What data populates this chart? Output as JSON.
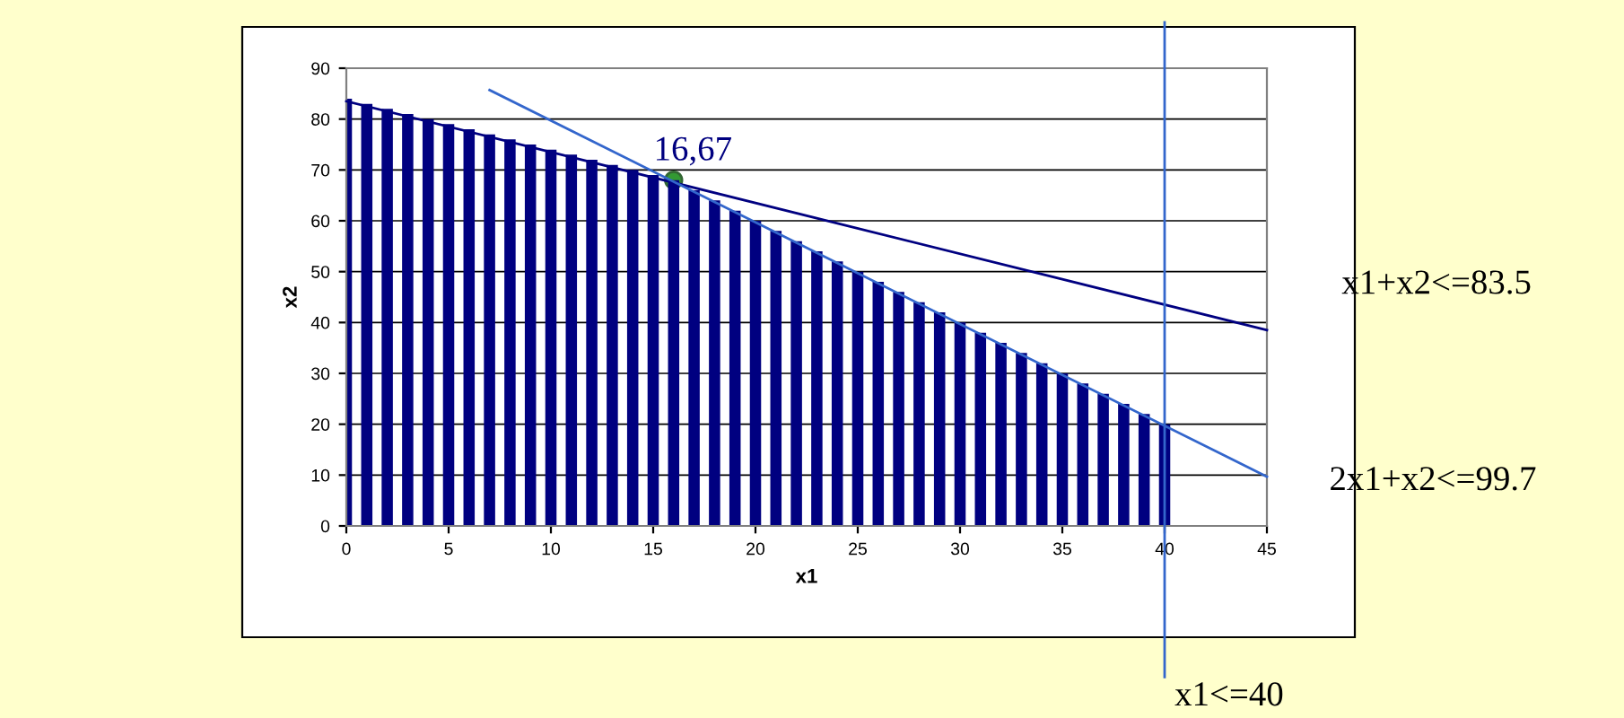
{
  "chart_data": {
    "type": "bar",
    "xlabel": "x1",
    "ylabel": "x2",
    "xlim": [
      0,
      45
    ],
    "xticks": [
      0,
      5,
      10,
      15,
      20,
      25,
      30,
      35,
      40,
      45
    ],
    "ylim": [
      0,
      90
    ],
    "yticks": [
      0,
      10,
      20,
      30,
      40,
      50,
      60,
      70,
      80,
      90
    ],
    "grid": "y",
    "series": [
      {
        "color": "#000080",
        "x": [
          0,
          1,
          2,
          3,
          4,
          5,
          6,
          7,
          8,
          9,
          10,
          11,
          12,
          13,
          14,
          15,
          16,
          17,
          18,
          19,
          20,
          21,
          22,
          23,
          24,
          25,
          26,
          27,
          28,
          29,
          30,
          31,
          32,
          33,
          34,
          35,
          36,
          37,
          38,
          39,
          40
        ],
        "values": [
          84,
          83,
          82,
          81,
          80,
          79,
          78,
          77,
          76,
          75,
          74,
          73,
          72,
          71,
          70,
          69,
          68,
          66,
          64,
          62,
          60,
          58,
          56,
          54,
          52,
          50,
          48,
          46,
          44,
          42,
          40,
          38,
          36,
          34,
          32,
          30,
          28,
          26,
          24,
          22,
          20
        ]
      },
      {
        "type": "line",
        "name": "x1+x2<=83.5",
        "color": "#000080",
        "x": [
          0,
          45
        ],
        "values": [
          83.5,
          38.5
        ]
      },
      {
        "type": "line",
        "name": "2x1+x2<=99.7",
        "color": "#3366cc",
        "x": [
          7,
          45
        ],
        "values": [
          85.7,
          9.7
        ]
      },
      {
        "type": "scatter",
        "color": "#339933",
        "marker": "circle",
        "x": [
          16
        ],
        "values": [
          68
        ]
      }
    ],
    "ref_lines": [
      {
        "axis": "x",
        "value": 40,
        "label": "x1<=40",
        "color": "#3366cc"
      }
    ],
    "annotations": [
      {
        "text": "16,67",
        "x": 16,
        "y": 68
      }
    ]
  }
}
